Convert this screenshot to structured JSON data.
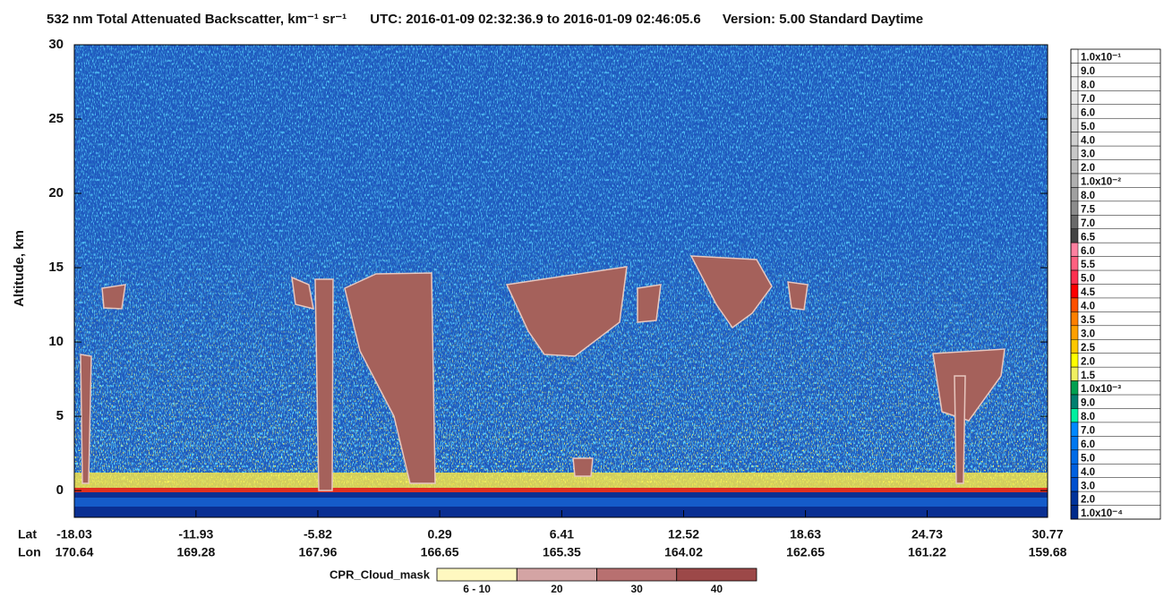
{
  "chart_data": {
    "type": "curtain",
    "title": "532 nm Total Attenuated Backscatter, km⁻¹ sr⁻¹",
    "time_range": "UTC:  2016-01-09 02:32:36.9  to  2016-01-09 02:46:05.6",
    "version": "Version: 5.00  Standard  Daytime",
    "ylabel": "Altitude, km",
    "ylim": [
      -1.8,
      30
    ],
    "yticks": [
      0,
      5,
      10,
      15,
      20,
      25,
      30
    ],
    "lat_label": "Lat",
    "lon_label": "Lon",
    "xlim": [
      -18.03,
      30.77
    ],
    "xticks": [
      -18.03,
      -11.93,
      -5.82,
      0.29,
      6.41,
      12.52,
      18.63,
      24.73,
      30.77
    ],
    "lon_ticks": [
      170.64,
      169.28,
      167.96,
      166.65,
      165.35,
      164.02,
      162.65,
      161.22,
      159.68
    ],
    "colorbar": {
      "labels": [
        "1.0x10⁻¹",
        "9.0",
        "8.0",
        "7.0",
        "6.0",
        "5.0",
        "4.0",
        "3.0",
        "2.0",
        "1.0x10⁻²",
        "8.0",
        "7.5",
        "7.0",
        "6.5",
        "6.0",
        "5.5",
        "5.0",
        "4.5",
        "4.0",
        "3.5",
        "3.0",
        "2.5",
        "2.0",
        "1.5",
        "1.0x10⁻³",
        "9.0",
        "8.0",
        "7.0",
        "6.0",
        "5.0",
        "4.0",
        "3.0",
        "2.0",
        "1.0x10⁻⁴"
      ],
      "colors": [
        "#ffffff",
        "#f8f8f8",
        "#f0f0f0",
        "#e8e8e8",
        "#e0e0e0",
        "#d8d8d8",
        "#d0d0d0",
        "#c8c8c8",
        "#bebebe",
        "#b0b0b0",
        "#a0a0a0",
        "#8c8c8c",
        "#6a6a6a",
        "#444444",
        "#ff80a0",
        "#ff6080",
        "#ff3050",
        "#ff0000",
        "#ff5000",
        "#ff7f00",
        "#ffa000",
        "#ffc800",
        "#ffff00",
        "#f0f060",
        "#00a050",
        "#008070",
        "#00f0a0",
        "#0088ff",
        "#0078f0",
        "#006ce8",
        "#0060e0",
        "#0050d0",
        "#00339c",
        "#002a8c"
      ]
    },
    "cpr_legend": {
      "title": "CPR_Cloud_mask",
      "labels": [
        "6 - 10",
        "20",
        "30",
        "40"
      ],
      "colors": [
        "#fff8c0",
        "#d4a4a4",
        "#b87070",
        "#9c4848"
      ]
    }
  }
}
